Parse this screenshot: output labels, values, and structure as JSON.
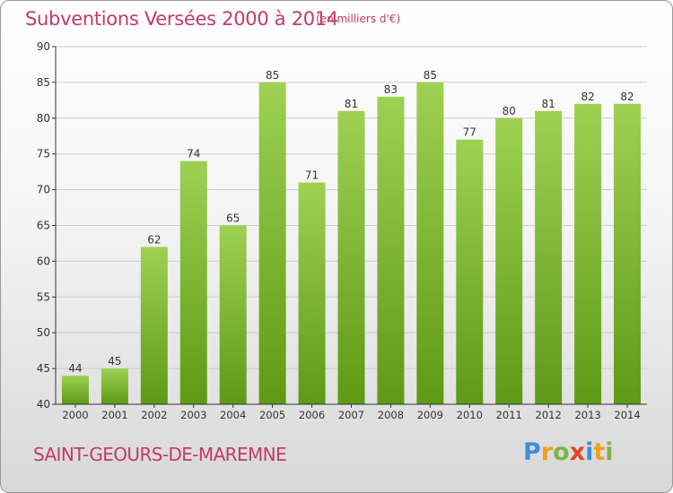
{
  "header": {
    "title": "Subventions Versées 2000 à 2014",
    "unit": "(en milliers d'€)"
  },
  "footer": {
    "commune": "SAINT-GEOURS-DE-MAREMNE",
    "logo": "Proxiti"
  },
  "colors": {
    "title": "#c23a6b",
    "bar_top": "#9ed152",
    "bar_bottom": "#5e9a16",
    "axis": "#333333",
    "grid": "#cccccc"
  },
  "chart_data": {
    "type": "bar",
    "title": "Subventions Versées 2000 à 2014",
    "subtitle": "(en milliers d'€)",
    "categories": [
      "2000",
      "2001",
      "2002",
      "2003",
      "2004",
      "2005",
      "2006",
      "2007",
      "2008",
      "2009",
      "2010",
      "2011",
      "2012",
      "2013",
      "2014"
    ],
    "values": [
      44,
      45,
      62,
      74,
      65,
      85,
      71,
      81,
      83,
      85,
      77,
      80,
      81,
      82,
      82
    ],
    "ylim": [
      40,
      90
    ],
    "yticks": [
      40,
      45,
      50,
      55,
      60,
      65,
      70,
      75,
      80,
      85,
      90
    ],
    "grid": "horizontal",
    "data_labels": true
  }
}
